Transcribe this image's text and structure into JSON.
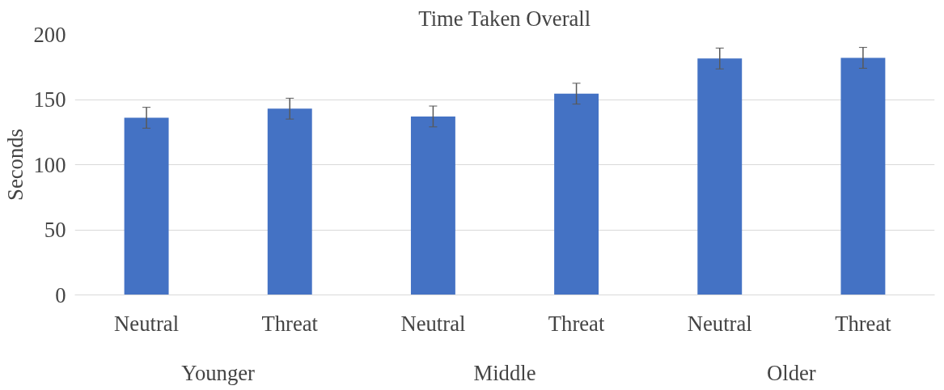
{
  "chart_data": {
    "type": "bar",
    "title": "Time Taken Overall",
    "ylabel": "Seconds",
    "categories": [
      "Neutral",
      "Threat",
      "Neutral",
      "Threat",
      "Neutral",
      "Threat"
    ],
    "annotations": [
      "Younger",
      "Middle",
      "Older"
    ],
    "values": [
      136,
      143,
      137,
      154.5,
      181.5,
      182
    ],
    "errors": [
      8,
      8,
      8,
      8,
      8,
      8
    ],
    "color": "#4472c4",
    "ylim": [
      0,
      200
    ],
    "yticks": [
      0,
      50,
      100,
      150,
      200
    ],
    "grid": "y"
  }
}
